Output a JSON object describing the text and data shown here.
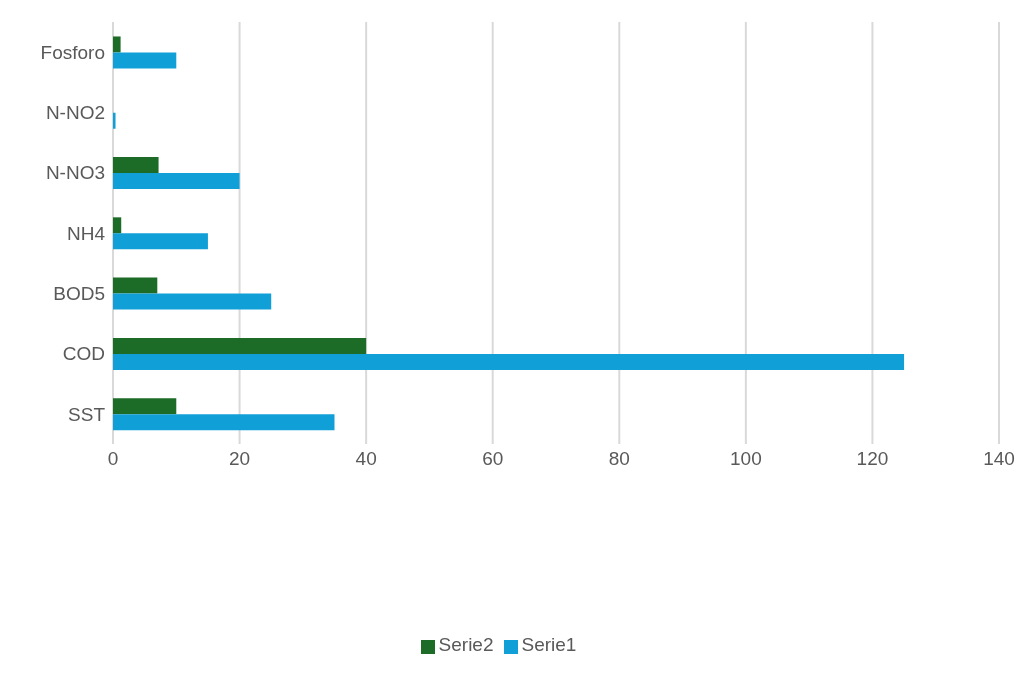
{
  "chart_data": {
    "type": "bar",
    "orientation": "horizontal",
    "categories": [
      "Fosforo",
      "N-NO2",
      "N-NO3",
      "NH4",
      "BOD5",
      "COD",
      "SST"
    ],
    "series": [
      {
        "name": "Serie2",
        "color": "#1c6b26",
        "values": [
          1.2,
          0,
          7.2,
          1.3,
          7,
          40,
          10
        ]
      },
      {
        "name": "Serie1",
        "color": "#109fd6",
        "values": [
          10,
          0.4,
          20,
          15,
          25,
          125,
          35
        ]
      }
    ],
    "xlim": [
      0,
      140
    ],
    "xticks": [
      0,
      20,
      40,
      60,
      80,
      100,
      120,
      140
    ],
    "grid": "x",
    "legend": "bottom"
  }
}
